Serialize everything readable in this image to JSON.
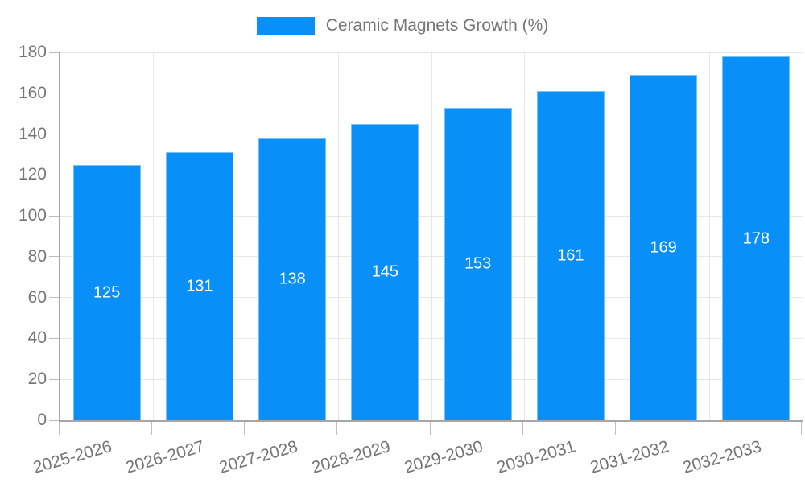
{
  "legend": {
    "label": "Ceramic Magnets Growth (%)"
  },
  "chart_data": {
    "type": "bar",
    "title": "Ceramic Magnets Growth (%)",
    "categories": [
      "2025-2026",
      "2026-2027",
      "2027-2028",
      "2028-2029",
      "2029-2030",
      "2030-2031",
      "2031-2032",
      "2032-2033"
    ],
    "values": [
      125,
      131,
      138,
      145,
      153,
      161,
      169,
      178
    ],
    "data_labels": [
      "125",
      "131",
      "138",
      "145",
      "153",
      "161",
      "169",
      "178"
    ],
    "xlabel": "",
    "ylabel": "",
    "ylim": [
      0,
      180
    ],
    "ytick_step": 20,
    "yticks": [
      0,
      20,
      40,
      60,
      80,
      100,
      120,
      140,
      160,
      180
    ],
    "grid": true,
    "legend_position": "top-center",
    "x_label_rotation_deg": -16
  },
  "colors": {
    "bar": "#0990f8",
    "bar_label": "#ffffff",
    "grid": "#e7e7e7",
    "axis": "#a6a6a6",
    "tick": "#bdbdbd",
    "text": "#757575",
    "background": "#ffffff"
  }
}
